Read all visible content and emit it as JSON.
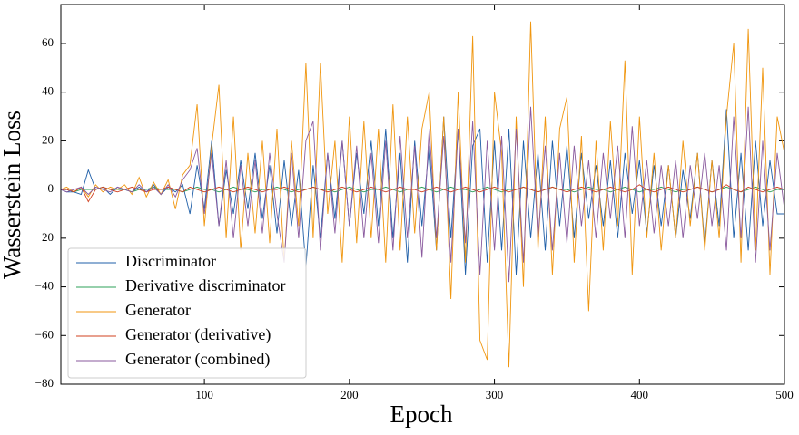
{
  "chart_data": {
    "type": "line",
    "xlabel": "Epoch",
    "ylabel": "Wasserstein Loss",
    "xlim": [
      1,
      500
    ],
    "ylim": [
      -80,
      76
    ],
    "xticks": [
      100,
      200,
      300,
      400,
      500
    ],
    "yticks": [
      {
        "value": -80,
        "label": "−80"
      },
      {
        "value": -60,
        "label": "−60"
      },
      {
        "value": -40,
        "label": "−40"
      },
      {
        "value": -20,
        "label": "−20"
      },
      0,
      20,
      40,
      60
    ],
    "legend": "lower left",
    "x": [
      1,
      5,
      10,
      15,
      20,
      25,
      30,
      35,
      40,
      45,
      50,
      55,
      60,
      65,
      70,
      75,
      80,
      85,
      90,
      95,
      100,
      105,
      110,
      115,
      120,
      125,
      130,
      135,
      140,
      145,
      150,
      155,
      160,
      165,
      170,
      175,
      180,
      185,
      190,
      195,
      200,
      205,
      210,
      215,
      220,
      225,
      230,
      235,
      240,
      245,
      250,
      255,
      260,
      265,
      270,
      275,
      280,
      285,
      290,
      295,
      300,
      305,
      310,
      315,
      320,
      325,
      330,
      335,
      340,
      345,
      350,
      355,
      360,
      365,
      370,
      375,
      380,
      385,
      390,
      395,
      400,
      405,
      410,
      415,
      420,
      425,
      430,
      435,
      440,
      445,
      450,
      455,
      460,
      465,
      470,
      475,
      480,
      485,
      490,
      495,
      500
    ],
    "series": [
      {
        "name": "Discriminator",
        "color": "#1f5fa8",
        "values": [
          0,
          -1,
          -1,
          -2,
          8,
          0,
          1,
          -2,
          1,
          0,
          -1,
          1,
          -1,
          2,
          -2,
          1,
          -1,
          2,
          -10,
          10,
          -8,
          20,
          -15,
          8,
          -10,
          12,
          -8,
          15,
          -12,
          10,
          -18,
          12,
          -15,
          8,
          -32,
          10,
          -20,
          15,
          -12,
          20,
          -15,
          15,
          -10,
          20,
          -15,
          25,
          -20,
          15,
          -30,
          20,
          -15,
          18,
          -25,
          30,
          -20,
          25,
          -35,
          18,
          25,
          -30,
          20,
          -25,
          25,
          -35,
          20,
          -20,
          15,
          -25,
          20,
          -15,
          18,
          -20,
          15,
          -12,
          10,
          -15,
          12,
          -20,
          15,
          -10,
          12,
          -18,
          10,
          -15,
          10,
          -20,
          8,
          -12,
          15,
          -23,
          12,
          -15,
          33,
          -20,
          15,
          -25,
          20,
          -15,
          12,
          -10,
          -10
        ]
      },
      {
        "name": "Derivative discriminator",
        "color": "#2ca05a",
        "values": [
          0,
          0,
          -1,
          0,
          0,
          0,
          1,
          0,
          0,
          0,
          -1,
          0,
          0,
          1,
          0,
          0,
          0,
          -1,
          0,
          1,
          0,
          0,
          -1,
          0,
          1,
          0,
          0,
          -1,
          0,
          0,
          1,
          0,
          -1,
          0,
          0,
          1,
          0,
          0,
          -1,
          0,
          1,
          0,
          -1,
          0,
          0,
          1,
          0,
          -1,
          0,
          0,
          1,
          0,
          -1,
          0,
          1,
          0,
          0,
          -1,
          0,
          1,
          0,
          -1,
          0,
          0,
          1,
          0,
          -1,
          0,
          1,
          0,
          0,
          -1,
          0,
          1,
          0,
          0,
          -1,
          0,
          1,
          0,
          -1,
          0,
          0,
          1,
          0,
          -1,
          0,
          0,
          1,
          0,
          -1,
          0,
          1,
          0,
          -1,
          0,
          1,
          0,
          -1,
          0,
          0
        ]
      },
      {
        "name": "Generator",
        "color": "#f0960f",
        "values": [
          0,
          1,
          -1,
          1,
          -3,
          2,
          -1,
          1,
          0,
          2,
          -2,
          5,
          -3,
          3,
          -2,
          4,
          -8,
          6,
          10,
          35,
          -15,
          18,
          43,
          -20,
          30,
          -25,
          15,
          -18,
          20,
          -22,
          25,
          -30,
          20,
          -15,
          52,
          -20,
          52,
          -10,
          20,
          -30,
          30,
          -22,
          28,
          -20,
          25,
          -30,
          35,
          -25,
          30,
          -18,
          25,
          40,
          -25,
          30,
          -45,
          40,
          -30,
          63,
          -62,
          -70,
          40,
          15,
          -73,
          30,
          -40,
          69,
          -25,
          30,
          -35,
          25,
          38,
          -30,
          22,
          -50,
          20,
          -25,
          28,
          -15,
          53,
          -35,
          30,
          -20,
          15,
          -25,
          10,
          -20,
          20,
          -15,
          15,
          -25,
          12,
          -20,
          30,
          60,
          -30,
          66,
          -25,
          50,
          -35,
          30,
          15
        ]
      },
      {
        "name": "Generator (derivative)",
        "color": "#d1401f",
        "values": [
          0,
          0,
          -1,
          1,
          -5,
          0,
          1,
          0,
          -1,
          0,
          1,
          0,
          -1,
          0,
          0,
          1,
          0,
          -1,
          1,
          0,
          -1,
          0,
          1,
          0,
          -1,
          0,
          1,
          0,
          -1,
          0,
          0,
          1,
          0,
          -1,
          0,
          1,
          0,
          -1,
          0,
          1,
          0,
          -1,
          0,
          1,
          0,
          -1,
          0,
          1,
          0,
          0,
          -1,
          0,
          1,
          0,
          -1,
          0,
          1,
          0,
          -1,
          0,
          1,
          0,
          -1,
          0,
          1,
          0,
          -1,
          0,
          1,
          0,
          -1,
          0,
          1,
          0,
          -1,
          0,
          1,
          0,
          -1,
          0,
          2,
          0,
          -1,
          0,
          1,
          0,
          -1,
          0,
          1,
          0,
          -1,
          0,
          2,
          0,
          -1,
          1,
          0,
          -1,
          0,
          1,
          0
        ]
      },
      {
        "name": "Generator (combined)",
        "color": "#8a5a9e",
        "values": [
          0,
          -1,
          0,
          1,
          -2,
          1,
          0,
          -1,
          1,
          0,
          -1,
          2,
          -1,
          1,
          -2,
          2,
          -3,
          4,
          8,
          17,
          -10,
          15,
          -15,
          12,
          -20,
          10,
          -15,
          12,
          -18,
          15,
          -10,
          -30,
          15,
          -20,
          20,
          28,
          -25,
          15,
          -18,
          20,
          -15,
          18,
          -20,
          15,
          -22,
          20,
          -25,
          22,
          -20,
          18,
          -28,
          25,
          -20,
          22,
          -30,
          25,
          -22,
          28,
          -35,
          20,
          -25,
          22,
          -38,
          25,
          -30,
          34,
          -20,
          18,
          -25,
          15,
          -22,
          18,
          -15,
          12,
          -20,
          15,
          -12,
          18,
          -20,
          26,
          -15,
          12,
          -18,
          10,
          -15,
          12,
          -20,
          10,
          -12,
          15,
          -15,
          10,
          -25,
          30,
          -20,
          34,
          -30,
          20,
          -25,
          15,
          -8
        ]
      }
    ]
  }
}
